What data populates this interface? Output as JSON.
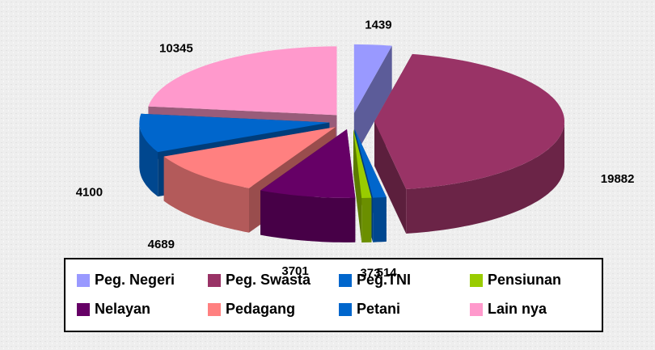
{
  "chart_data": {
    "type": "pie",
    "categories": [
      "Peg. Negeri",
      "Peg. Swasta",
      "Peg.TNI",
      "Pensiunan",
      "Nelayan",
      "Pedagang",
      "Petani",
      "Lain nya"
    ],
    "values": [
      1439,
      19882,
      514,
      373,
      3701,
      4689,
      4100,
      10345
    ],
    "colors": [
      "#9999ff",
      "#993366",
      "#0066cc",
      "#99cc00",
      "#660066",
      "#ff8080",
      "#0066cc",
      "#ff99cc"
    ],
    "legend": "bottom"
  }
}
